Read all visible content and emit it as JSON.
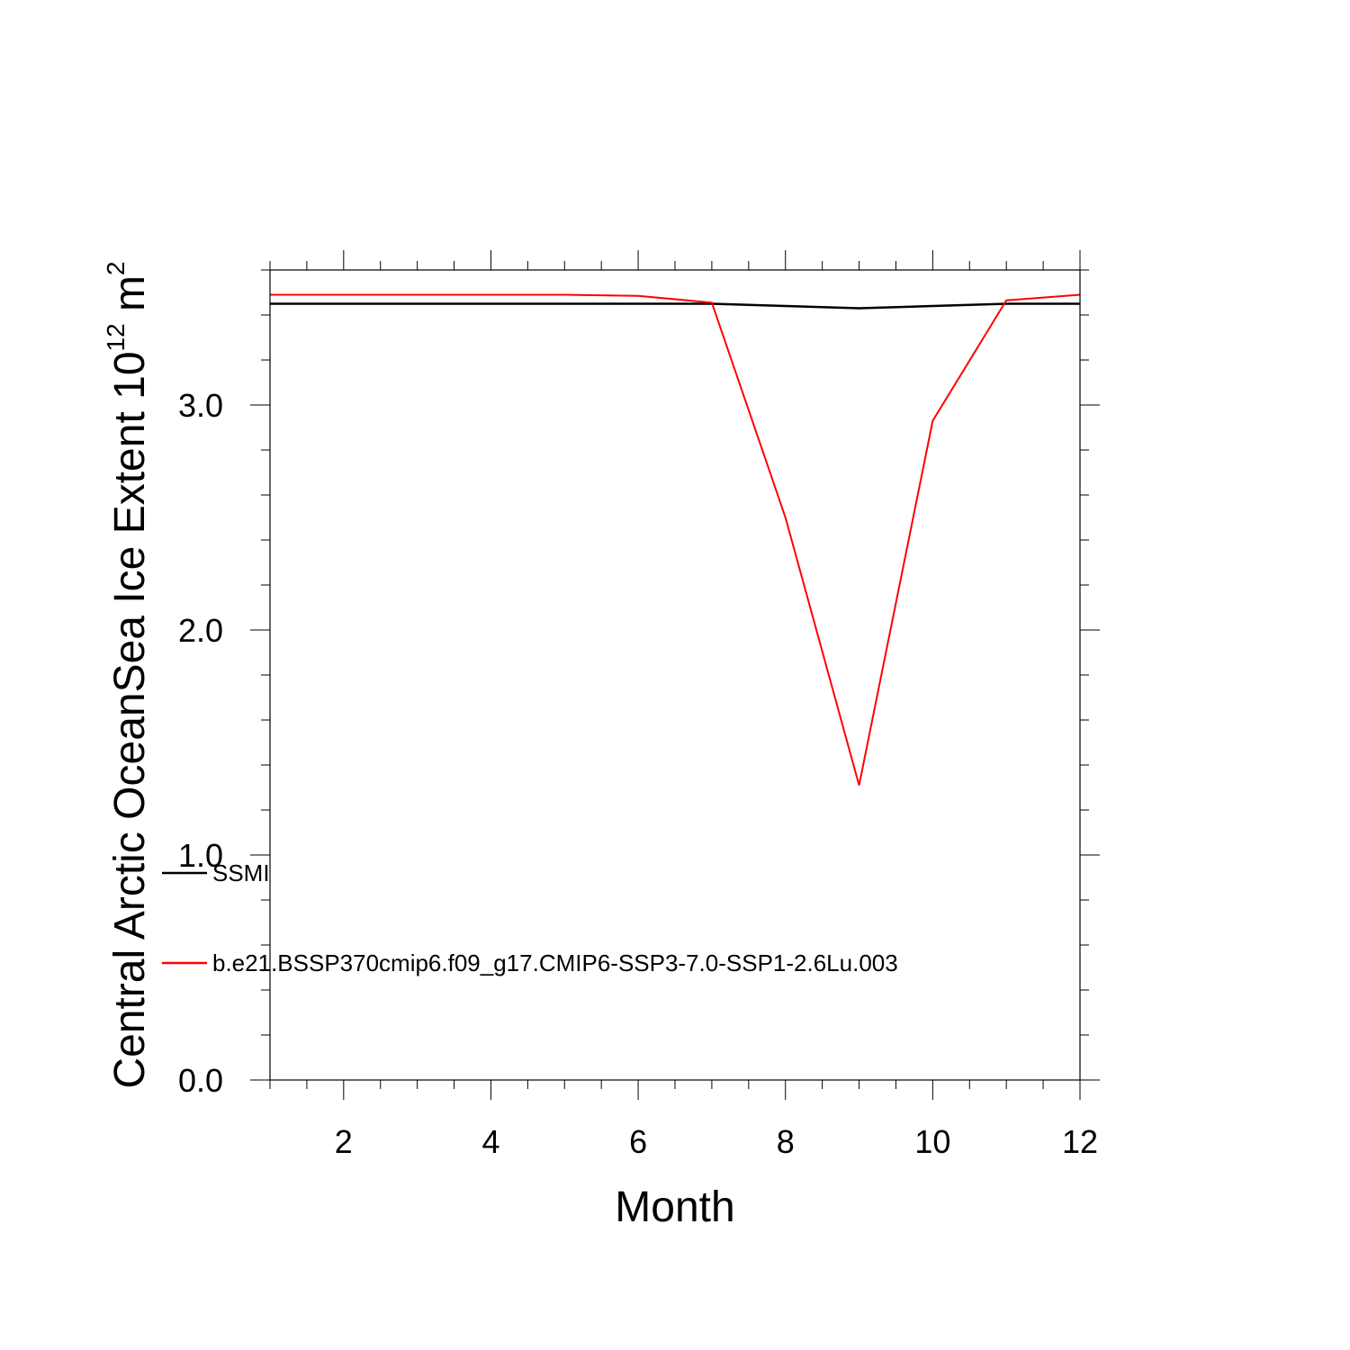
{
  "chart_data": {
    "type": "line",
    "title": "",
    "xlabel": "Month",
    "ylabel": "Central Arctic OceanSea Ice Extent 10",
    "ylabel_exp": "12",
    "ylabel_unit": " m",
    "ylabel_unit_exp": "2",
    "xlim": [
      1,
      12
    ],
    "ylim": [
      0,
      3.6
    ],
    "x_ticks": [
      2,
      4,
      6,
      8,
      10,
      12
    ],
    "x_tick_labels": [
      "2",
      "4",
      "6",
      "8",
      "10",
      "12"
    ],
    "y_ticks": [
      0,
      1,
      2,
      3
    ],
    "y_tick_labels": [
      "0.0",
      "1.0",
      "2.0",
      "3.0"
    ],
    "grid": false,
    "legend_position": "lower-left",
    "x": [
      1,
      2,
      3,
      4,
      5,
      6,
      7,
      8,
      9,
      10,
      11,
      12
    ],
    "series": [
      {
        "name": "SSMI",
        "color": "#000000",
        "values": [
          3.45,
          3.45,
          3.45,
          3.45,
          3.45,
          3.45,
          3.45,
          3.44,
          3.43,
          3.44,
          3.45,
          3.45
        ]
      },
      {
        "name": "b.e21.BSSP370cmip6.f09_g17.CMIP6-SSP3-7.0-SSP1-2.6Lu.003",
        "color": "#ff0000",
        "values": [
          3.49,
          3.49,
          3.49,
          3.49,
          3.49,
          3.485,
          3.455,
          2.5,
          1.31,
          2.93,
          3.465,
          3.49
        ]
      }
    ]
  }
}
